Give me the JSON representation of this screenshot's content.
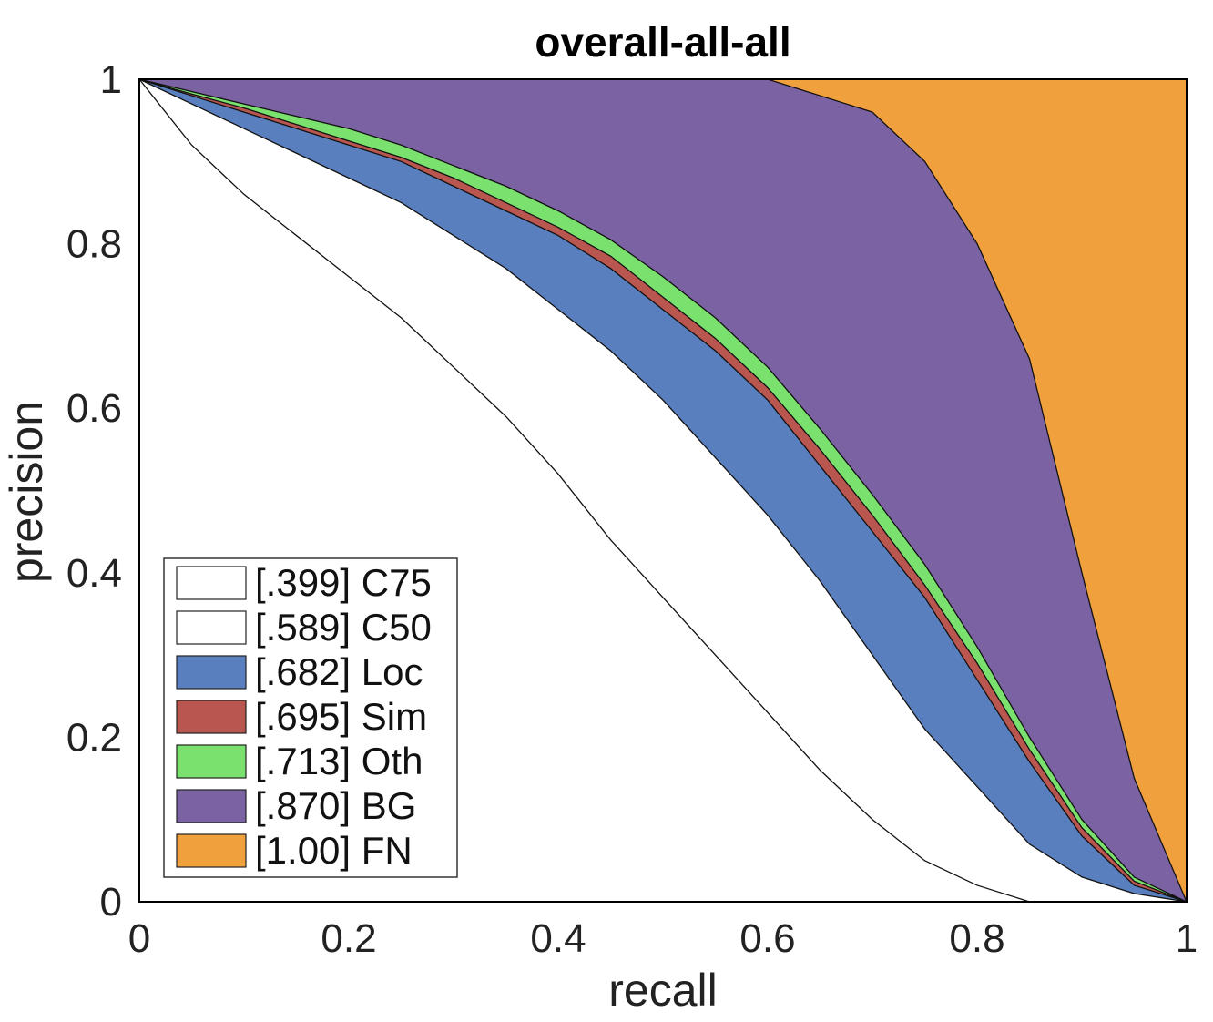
{
  "chart_data": {
    "type": "area",
    "title": "overall-all-all",
    "xlabel": "recall",
    "ylabel": "precision",
    "xlim": [
      0,
      1
    ],
    "ylim": [
      0,
      1
    ],
    "xticks": [
      "0",
      "0.2",
      "0.4",
      "0.6",
      "0.8",
      "1"
    ],
    "yticks": [
      "0",
      "0.2",
      "0.4",
      "0.6",
      "0.8",
      "1"
    ],
    "grid": false,
    "legend_position": "bottom-left",
    "x": [
      0,
      0.05,
      0.1,
      0.15,
      0.2,
      0.25,
      0.3,
      0.35,
      0.4,
      0.45,
      0.5,
      0.55,
      0.6,
      0.65,
      0.7,
      0.75,
      0.8,
      0.85,
      0.9,
      0.95,
      1.0
    ],
    "series": [
      {
        "name": "C75",
        "label": "[.399] C75",
        "color": "#ffffff",
        "values": [
          1.0,
          0.92,
          0.86,
          0.81,
          0.76,
          0.71,
          0.65,
          0.59,
          0.52,
          0.44,
          0.37,
          0.3,
          0.23,
          0.16,
          0.1,
          0.05,
          0.02,
          0.0,
          0.0,
          0.0,
          0.0
        ]
      },
      {
        "name": "C50",
        "label": "[.589] C50",
        "color": "#ffffff",
        "values": [
          1.0,
          0.97,
          0.94,
          0.91,
          0.88,
          0.85,
          0.81,
          0.77,
          0.72,
          0.67,
          0.61,
          0.54,
          0.47,
          0.39,
          0.3,
          0.21,
          0.14,
          0.07,
          0.03,
          0.01,
          0.0
        ]
      },
      {
        "name": "Loc",
        "label": "[.682] Loc",
        "color": "#5a7fbe",
        "values": [
          1.0,
          0.98,
          0.96,
          0.94,
          0.92,
          0.9,
          0.87,
          0.84,
          0.81,
          0.77,
          0.72,
          0.67,
          0.61,
          0.53,
          0.45,
          0.37,
          0.27,
          0.17,
          0.08,
          0.02,
          0.0
        ]
      },
      {
        "name": "Sim",
        "label": "[.695] Sim",
        "color": "#b8564f",
        "values": [
          1.0,
          0.982,
          0.965,
          0.945,
          0.925,
          0.905,
          0.88,
          0.85,
          0.82,
          0.785,
          0.735,
          0.685,
          0.625,
          0.55,
          0.47,
          0.385,
          0.29,
          0.185,
          0.09,
          0.025,
          0.0
        ]
      },
      {
        "name": "Oth",
        "label": "[.713] Oth",
        "color": "#7ae16e",
        "values": [
          1.0,
          0.985,
          0.97,
          0.955,
          0.94,
          0.92,
          0.895,
          0.87,
          0.84,
          0.805,
          0.76,
          0.71,
          0.65,
          0.575,
          0.495,
          0.41,
          0.31,
          0.2,
          0.1,
          0.03,
          0.0
        ]
      },
      {
        "name": "BG",
        "label": "[.870] BG",
        "color": "#7b63a3",
        "values": [
          1.0,
          1.0,
          1.0,
          1.0,
          1.0,
          1.0,
          1.0,
          1.0,
          1.0,
          1.0,
          1.0,
          1.0,
          1.0,
          0.98,
          0.96,
          0.9,
          0.8,
          0.66,
          0.4,
          0.15,
          0.0
        ]
      },
      {
        "name": "FN",
        "label": "[1.00] FN",
        "color": "#f0a03c",
        "values": [
          1.0,
          1.0,
          1.0,
          1.0,
          1.0,
          1.0,
          1.0,
          1.0,
          1.0,
          1.0,
          1.0,
          1.0,
          1.0,
          1.0,
          1.0,
          1.0,
          1.0,
          1.0,
          1.0,
          1.0,
          1.0
        ]
      }
    ]
  }
}
